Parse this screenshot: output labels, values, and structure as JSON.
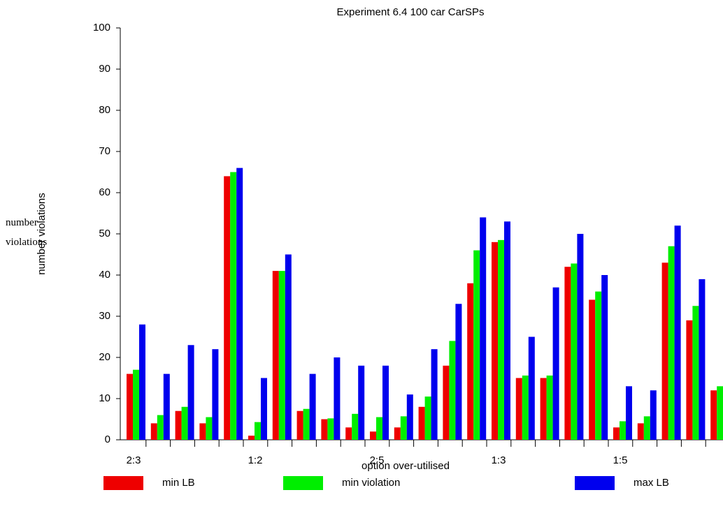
{
  "chart_data": {
    "type": "bar",
    "title": "Experiment 6.4 100 car CarSPs",
    "x_label": "option over-utilised",
    "y_label": "number violations",
    "categories": [
      "2:3",
      null,
      null,
      null,
      null,
      "1:2",
      null,
      null,
      null,
      null,
      "2:5",
      null,
      null,
      null,
      null,
      "1:3",
      null,
      null,
      null,
      null,
      "1:5",
      null,
      null,
      null,
      null
    ],
    "series": [
      {
        "name": "min LB",
        "color": "#ee0000",
        "values": [
          16,
          4,
          7,
          4,
          64,
          1,
          41,
          7,
          5,
          3,
          2,
          3,
          8,
          18,
          38,
          48,
          15,
          15,
          42,
          34,
          3,
          4,
          43,
          29,
          12
        ]
      },
      {
        "name": "min violation",
        "color": "#00ee00",
        "values": [
          17,
          6,
          8,
          5.5,
          65,
          4.3,
          41,
          7.5,
          5.2,
          6.3,
          5.5,
          5.7,
          10.5,
          24,
          46,
          48.5,
          15.6,
          15.6,
          42.8,
          36,
          4.5,
          5.7,
          47,
          32.5,
          13
        ]
      },
      {
        "name": "max LB",
        "color": "#0000ee",
        "values": [
          28,
          16,
          23,
          22,
          66,
          15,
          45,
          16,
          20,
          18,
          18,
          11,
          22,
          33,
          54,
          53,
          25,
          37,
          50,
          40,
          13,
          12,
          52,
          39,
          null
        ]
      }
    ],
    "ylim": [
      0,
      100
    ],
    "yticks": [
      0,
      10,
      20,
      30,
      40,
      50,
      60,
      70,
      80,
      90,
      100
    ],
    "grid": false
  }
}
